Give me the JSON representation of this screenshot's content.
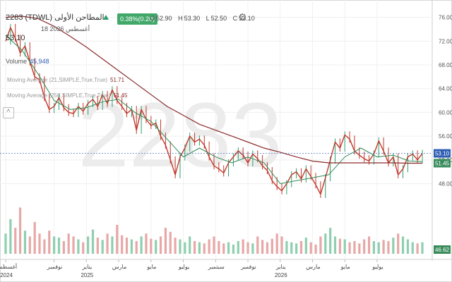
{
  "header": {
    "title": "2283  (TDWL)  المطاحن الأولى",
    "change": "0.38%(0.20)",
    "ohlc": [
      {
        "k": "O",
        "v": "52.90"
      },
      {
        "k": "H",
        "v": "53.30"
      },
      {
        "k": "L",
        "v": "52.50"
      },
      {
        "k": "C",
        "v": "53.10"
      }
    ],
    "date": "18 أغسطس 2026",
    "last": "53.10",
    "volume_label": "Volume",
    "volume_value": "45,948",
    "ma1_label": "Moving Average (21,SIMPLE,True,True)",
    "ma1_value": "51.71",
    "ma2_label": "Moving Average (250,SIMPLE,True,True)",
    "ma2_value": "51.45",
    "collapse": "^"
  },
  "watermark": "2283",
  "icons": {
    "settings": "gear-icon",
    "collapse": "chevron-up-icon",
    "up": "triangle-up-icon"
  },
  "colors": {
    "up": "#2e9e6e",
    "down": "#c0392b",
    "ma_short": "#2e8b57",
    "ma_long": "#8b2b2b",
    "last_badge": "#2e5db3",
    "ma_badge": "#3a8c5c",
    "vol_badge": "#3a8c5c"
  },
  "chart_data": {
    "type": "line",
    "y_ticks": [
      "76.00",
      "72.00",
      "68.00",
      "64.00",
      "60.00",
      "56.00",
      "52.00",
      "48.00"
    ],
    "ylim": [
      44.5,
      77.5
    ],
    "x_ticks": [
      {
        "label": "أغسطس",
        "year": "2024",
        "t": 0
      },
      {
        "label": "نوفمبر",
        "year": "",
        "t": 3
      },
      {
        "label": "يناير",
        "year": "2025",
        "t": 5
      },
      {
        "label": "مارس",
        "year": "",
        "t": 7
      },
      {
        "label": "مايو",
        "year": "",
        "t": 9
      },
      {
        "label": "يوليو",
        "year": "",
        "t": 11
      },
      {
        "label": "سبتمبر",
        "year": "",
        "t": 13
      },
      {
        "label": "نوفمبر",
        "year": "",
        "t": 15
      },
      {
        "label": "يناير",
        "year": "2026",
        "t": 17
      },
      {
        "label": "مارس",
        "year": "",
        "t": 19
      },
      {
        "label": "مايو",
        "year": "",
        "t": 21
      },
      {
        "label": "يوليو",
        "year": "",
        "t": 23
      }
    ],
    "price": [
      [
        0,
        72.0
      ],
      [
        0.3,
        74.3
      ],
      [
        0.6,
        72.5
      ],
      [
        0.9,
        70.0
      ],
      [
        1.2,
        71.2
      ],
      [
        1.5,
        68.5
      ],
      [
        1.8,
        66.0
      ],
      [
        2.1,
        65.5
      ],
      [
        2.4,
        62.5
      ],
      [
        2.7,
        60.5
      ],
      [
        3.0,
        61.0
      ],
      [
        3.3,
        62.5
      ],
      [
        3.6,
        60.8
      ],
      [
        3.9,
        60.0
      ],
      [
        4.2,
        59.8
      ],
      [
        4.5,
        61.0
      ],
      [
        4.8,
        60.2
      ],
      [
        5.1,
        61.5
      ],
      [
        5.4,
        62.2
      ],
      [
        5.7,
        61.0
      ],
      [
        6.0,
        63.0
      ],
      [
        6.3,
        61.5
      ],
      [
        6.6,
        63.8
      ],
      [
        6.9,
        62.0
      ],
      [
        7.2,
        61.0
      ],
      [
        7.5,
        59.8
      ],
      [
        7.8,
        60.5
      ],
      [
        8.1,
        57.0
      ],
      [
        8.4,
        60.5
      ],
      [
        8.7,
        58.8
      ],
      [
        9.0,
        57.8
      ],
      [
        9.3,
        58.2
      ],
      [
        9.6,
        56.0
      ],
      [
        9.9,
        54.5
      ],
      [
        10.2,
        52.0
      ],
      [
        10.5,
        49.5
      ],
      [
        10.8,
        52.5
      ],
      [
        11.1,
        54.0
      ],
      [
        11.4,
        56.0
      ],
      [
        11.7,
        55.0
      ],
      [
        12.0,
        55.5
      ],
      [
        12.3,
        54.5
      ],
      [
        12.6,
        52.5
      ],
      [
        12.9,
        51.0
      ],
      [
        13.2,
        50.5
      ],
      [
        13.5,
        49.8
      ],
      [
        13.8,
        51.5
      ],
      [
        14.1,
        52.5
      ],
      [
        14.4,
        53.5
      ],
      [
        14.7,
        52.8
      ],
      [
        15.0,
        51.5
      ],
      [
        15.3,
        53.0
      ],
      [
        15.6,
        52.2
      ],
      [
        15.9,
        51.0
      ],
      [
        16.2,
        50.2
      ],
      [
        16.5,
        48.5
      ],
      [
        16.8,
        47.5
      ],
      [
        17.1,
        46.8
      ],
      [
        17.4,
        48.0
      ],
      [
        17.7,
        49.5
      ],
      [
        18.0,
        50.0
      ],
      [
        18.3,
        48.8
      ],
      [
        18.6,
        50.5
      ],
      [
        18.9,
        49.2
      ],
      [
        19.2,
        47.8
      ],
      [
        19.5,
        46.2
      ],
      [
        19.8,
        49.0
      ],
      [
        20.1,
        52.0
      ],
      [
        20.4,
        55.0
      ],
      [
        20.7,
        54.0
      ],
      [
        21.0,
        56.2
      ],
      [
        21.3,
        55.5
      ],
      [
        21.6,
        53.5
      ],
      [
        21.9,
        52.8
      ],
      [
        22.2,
        52.2
      ],
      [
        22.5,
        51.8
      ],
      [
        22.8,
        53.0
      ],
      [
        23.1,
        55.2
      ],
      [
        23.4,
        53.5
      ],
      [
        23.7,
        51.5
      ],
      [
        24.0,
        52.5
      ],
      [
        24.3,
        49.5
      ],
      [
        24.6,
        50.5
      ],
      [
        24.9,
        52.5
      ],
      [
        25.2,
        53.0
      ],
      [
        25.5,
        52.0
      ],
      [
        25.8,
        53.1
      ]
    ],
    "ma21": [
      [
        0,
        73.0
      ],
      [
        1.0,
        70.5
      ],
      [
        2.0,
        66.5
      ],
      [
        3.0,
        62.0
      ],
      [
        4.0,
        60.5
      ],
      [
        5.0,
        60.8
      ],
      [
        6.0,
        61.8
      ],
      [
        7.0,
        62.2
      ],
      [
        8.0,
        60.0
      ],
      [
        9.0,
        58.5
      ],
      [
        10.0,
        55.5
      ],
      [
        11.0,
        52.5
      ],
      [
        12.0,
        54.0
      ],
      [
        13.0,
        52.5
      ],
      [
        14.0,
        51.5
      ],
      [
        15.0,
        52.5
      ],
      [
        16.0,
        51.5
      ],
      [
        17.0,
        48.0
      ],
      [
        18.0,
        48.5
      ],
      [
        19.0,
        49.0
      ],
      [
        20.0,
        49.5
      ],
      [
        21.0,
        52.5
      ],
      [
        22.0,
        54.0
      ],
      [
        23.0,
        52.5
      ],
      [
        24.0,
        52.8
      ],
      [
        25.0,
        51.8
      ],
      [
        25.8,
        51.7
      ]
    ],
    "ma250": [
      [
        0,
        76.0
      ],
      [
        1.0,
        76.2
      ],
      [
        2.0,
        75.8
      ],
      [
        3.0,
        74.5
      ],
      [
        4.0,
        72.8
      ],
      [
        5.0,
        71.0
      ],
      [
        6.0,
        69.0
      ],
      [
        7.0,
        67.0
      ],
      [
        8.0,
        65.0
      ],
      [
        9.0,
        63.0
      ],
      [
        10.0,
        61.0
      ],
      [
        11.0,
        59.5
      ],
      [
        12.0,
        58.0
      ],
      [
        13.0,
        57.0
      ],
      [
        14.0,
        56.0
      ],
      [
        15.0,
        55.0
      ],
      [
        16.0,
        54.0
      ],
      [
        17.0,
        53.3
      ],
      [
        18.0,
        52.5
      ],
      [
        19.0,
        51.8
      ],
      [
        20.0,
        51.5
      ],
      [
        21.0,
        51.5
      ],
      [
        22.0,
        51.5
      ],
      [
        23.0,
        51.5
      ],
      [
        24.0,
        51.5
      ],
      [
        25.0,
        51.45
      ],
      [
        25.8,
        51.45
      ]
    ],
    "volume": [
      0.35,
      0.6,
      0.45,
      0.8,
      0.4,
      0.3,
      0.55,
      0.35,
      0.25,
      0.4,
      0.3,
      0.28,
      0.22,
      0.35,
      0.3,
      0.25,
      0.2,
      0.3,
      0.42,
      0.28,
      0.24,
      0.35,
      0.3,
      0.5,
      0.32,
      0.28,
      0.25,
      0.22,
      0.3,
      0.35,
      0.26,
      0.24,
      0.3,
      0.45,
      0.38,
      0.28,
      0.25,
      0.2,
      0.3,
      0.22,
      0.2,
      0.18,
      0.25,
      0.3,
      0.22,
      0.18,
      0.2,
      0.16,
      0.22,
      0.25,
      0.2,
      0.18,
      0.3,
      0.24,
      0.2,
      0.26,
      0.35,
      0.3,
      0.22,
      0.2,
      0.18,
      0.22,
      0.28,
      0.2,
      0.16,
      0.3,
      0.35,
      0.45,
      0.3,
      0.26,
      0.25,
      0.2,
      0.22,
      0.18,
      0.25,
      0.3,
      0.22,
      0.2,
      0.24,
      0.22,
      0.28,
      0.35,
      0.3,
      0.25,
      0.2,
      0.18,
      0.2
    ],
    "badges": [
      {
        "label": "53.10",
        "value": 53.1,
        "color": "#2e5db3"
      },
      {
        "label": "51.45",
        "value": 51.45,
        "color": "#3a8c5c"
      }
    ],
    "volume_badge": "46.62",
    "grid": true,
    "xlabel": "",
    "ylabel": ""
  }
}
